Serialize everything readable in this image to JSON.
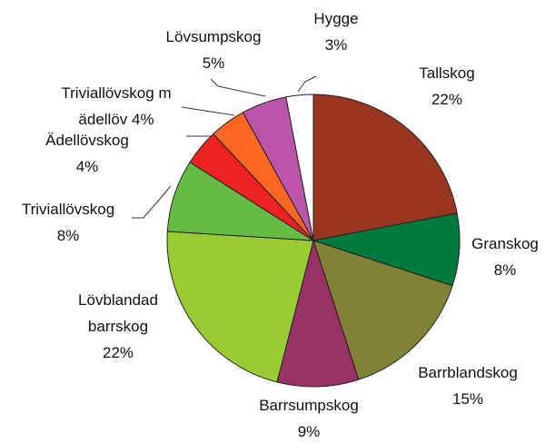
{
  "chart_data": {
    "type": "pie",
    "categories": [
      "Tallskog",
      "Granskog",
      "Barrblandskog",
      "Barrsumpskog",
      "Lövblandad barrskog",
      "Triviallövskog",
      "Ädellövskog",
      "Triviallövskog m ädellöv",
      "Lövsumpskog",
      "Hygge"
    ],
    "values": [
      22,
      8,
      15,
      9,
      22,
      8,
      4,
      4,
      5,
      3
    ],
    "value_labels": [
      "22%",
      "8%",
      "15%",
      "9%",
      "22%",
      "8%",
      "4%",
      "4%",
      "5%",
      "3%"
    ],
    "colors": [
      "#9a3520",
      "#007a3d",
      "#828236",
      "#993366",
      "#99cc33",
      "#66bb44",
      "#ee2222",
      "#ff6622",
      "#bb55aa",
      "#ffffff"
    ]
  }
}
